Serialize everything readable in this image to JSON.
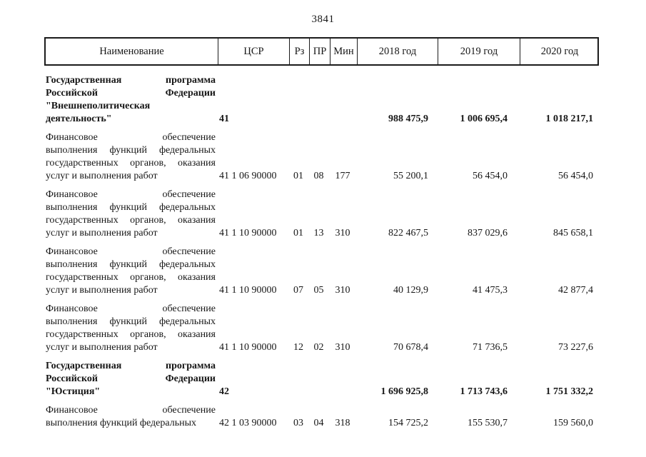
{
  "page": {
    "number": "3841"
  },
  "table": {
    "headers": {
      "name": "Наименование",
      "csr": "ЦСР",
      "rz": "Рз",
      "pr": "ПР",
      "min": "Мин",
      "y2018": "2018 год",
      "y2019": "2019 год",
      "y2020": "2020 год"
    },
    "rows": [
      {
        "bold": true,
        "name_lines": [
          "Государственная программа",
          "Российской Федерации",
          "\"Внешнеполитическая",
          "деятельность\""
        ],
        "csr": "41",
        "rz": "",
        "pr": "",
        "min": "",
        "y2018": "988 475,9",
        "y2019": "1 006 695,4",
        "y2020": "1 018 217,1"
      },
      {
        "bold": false,
        "name_lines": [
          "Финансовое обеспечение",
          "выполнения функций федеральных",
          "государственных органов, оказания",
          "услуг и выполнения работ"
        ],
        "csr": "41 1 06 90000",
        "rz": "01",
        "pr": "08",
        "min": "177",
        "y2018": "55 200,1",
        "y2019": "56 454,0",
        "y2020": "56 454,0"
      },
      {
        "bold": false,
        "name_lines": [
          "Финансовое обеспечение",
          "выполнения функций федеральных",
          "государственных органов, оказания",
          "услуг и выполнения работ"
        ],
        "csr": "41 1 10 90000",
        "rz": "01",
        "pr": "13",
        "min": "310",
        "y2018": "822 467,5",
        "y2019": "837 029,6",
        "y2020": "845 658,1"
      },
      {
        "bold": false,
        "name_lines": [
          "Финансовое обеспечение",
          "выполнения функций федеральных",
          "государственных органов, оказания",
          "услуг и выполнения работ"
        ],
        "csr": "41 1 10 90000",
        "rz": "07",
        "pr": "05",
        "min": "310",
        "y2018": "40 129,9",
        "y2019": "41 475,3",
        "y2020": "42 877,4"
      },
      {
        "bold": false,
        "name_lines": [
          "Финансовое обеспечение",
          "выполнения функций федеральных",
          "государственных органов, оказания",
          "услуг и выполнения работ"
        ],
        "csr": "41 1 10 90000",
        "rz": "12",
        "pr": "02",
        "min": "310",
        "y2018": "70 678,4",
        "y2019": "71 736,5",
        "y2020": "73 227,6"
      },
      {
        "bold": true,
        "name_lines": [
          "Государственная программа",
          "Российской Федерации",
          "\"Юстиция\""
        ],
        "csr": "42",
        "rz": "",
        "pr": "",
        "min": "",
        "y2018": "1 696 925,8",
        "y2019": "1 713 743,6",
        "y2020": "1 751 332,2"
      },
      {
        "bold": false,
        "name_lines": [
          "Финансовое обеспечение",
          "выполнения функций федеральных"
        ],
        "csr": "42 1 03 90000",
        "rz": "03",
        "pr": "04",
        "min": "318",
        "y2018": "154 725,2",
        "y2019": "155 530,7",
        "y2020": "159 560,0"
      }
    ]
  }
}
